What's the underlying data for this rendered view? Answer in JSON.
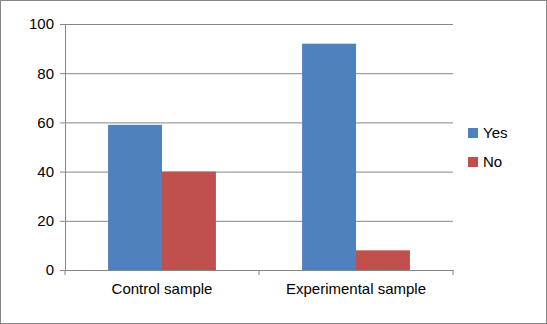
{
  "chart_data": {
    "type": "bar",
    "categories": [
      "Control sample",
      "Experimental sample"
    ],
    "series": [
      {
        "name": "Yes",
        "color": "#4f81bd",
        "values": [
          59,
          92
        ]
      },
      {
        "name": "No",
        "color": "#c0504d",
        "values": [
          40,
          8
        ]
      }
    ],
    "ylim": [
      0,
      100
    ],
    "yticks": [
      0,
      20,
      40,
      60,
      80,
      100
    ],
    "grid": true,
    "legend": "right"
  }
}
